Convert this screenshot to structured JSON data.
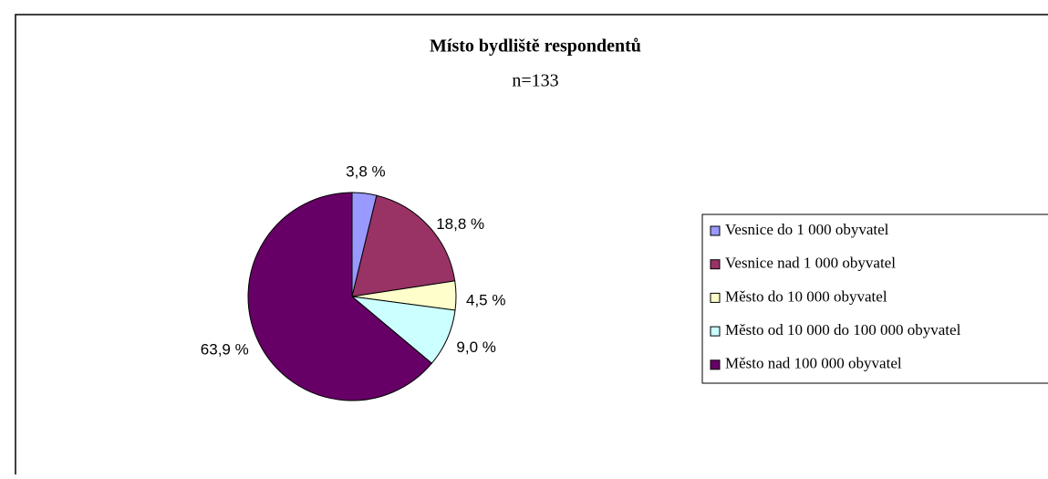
{
  "chart_data": {
    "type": "pie",
    "title": "Místo bydliště respondentů",
    "subtitle": "n=133",
    "categories": [
      "Vesnice do 1 000 obyvatel",
      "Vesnice nad 1 000 obyvatel",
      "Město do 10 000 obyvatel",
      "Město od 10 000 do 100 000 obyvatel",
      "Město nad 100 000 obyvatel"
    ],
    "values": [
      3.8,
      18.8,
      4.5,
      9.0,
      63.9
    ],
    "value_labels": [
      "3,8 %",
      "18,8 %",
      "4,5 %",
      "9,0 %",
      "63,9 %"
    ],
    "colors": [
      "#9999ff",
      "#993366",
      "#ffffcc",
      "#ccffff",
      "#660066"
    ],
    "legend": "right"
  }
}
